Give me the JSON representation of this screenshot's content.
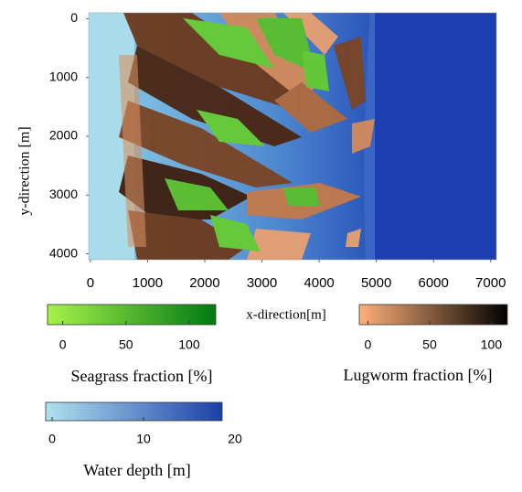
{
  "chart_data": {
    "type": "map",
    "xlabel": "x-direction[m]",
    "ylabel": "y-direction [m]",
    "xlim": [
      -30,
      7100
    ],
    "ylim": [
      -100,
      4100
    ],
    "xticks": [
      0,
      1000,
      2000,
      3000,
      4000,
      5000,
      6000,
      7000
    ],
    "yticks": [
      0,
      1000,
      2000,
      3000,
      4000
    ],
    "colorbars": [
      {
        "label": "Seagrass fraction [%]",
        "colors": [
          "#a6f24a",
          "#007a12"
        ],
        "lim": [
          -12,
          121
        ],
        "ticks": [
          0,
          50,
          100
        ]
      },
      {
        "label": "Lugworm fraction [%]",
        "colors": [
          "#ffb07a",
          "#000000"
        ],
        "lim": [
          -7,
          113
        ],
        "ticks": [
          0,
          50,
          100
        ]
      },
      {
        "label": "Water depth [m]",
        "colors": [
          "#b0e2ee",
          "#1b3fa8"
        ],
        "lim": [
          -0.7,
          18.6
        ],
        "ticks": [
          0,
          10,
          20
        ]
      }
    ]
  }
}
